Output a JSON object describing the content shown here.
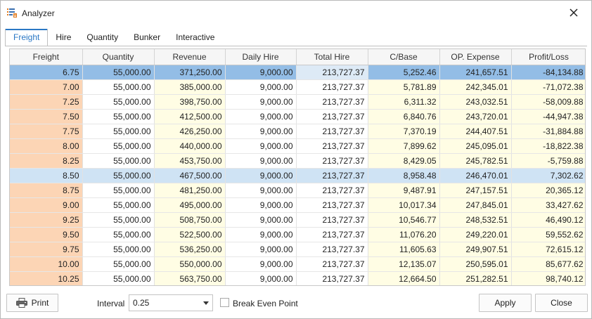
{
  "window": {
    "title": "Analyzer"
  },
  "tabs": [
    {
      "label": "Freight",
      "active": true
    },
    {
      "label": "Hire",
      "active": false
    },
    {
      "label": "Quantity",
      "active": false
    },
    {
      "label": "Bunker",
      "active": false
    },
    {
      "label": "Interactive",
      "active": false
    }
  ],
  "grid": {
    "columns": [
      "Freight",
      "Quantity",
      "Revenue",
      "Daily Hire",
      "Total Hire",
      "C/Base",
      "OP. Expense",
      "Profit/Loss"
    ],
    "selected_row": 0,
    "break_even_row": 7,
    "rows": [
      [
        "6.75",
        "55,000.00",
        "371,250.00",
        "9,000.00",
        "213,727.37",
        "5,252.46",
        "241,657.51",
        "-84,134.88"
      ],
      [
        "7.00",
        "55,000.00",
        "385,000.00",
        "9,000.00",
        "213,727.37",
        "5,781.89",
        "242,345.01",
        "-71,072.38"
      ],
      [
        "7.25",
        "55,000.00",
        "398,750.00",
        "9,000.00",
        "213,727.37",
        "6,311.32",
        "243,032.51",
        "-58,009.88"
      ],
      [
        "7.50",
        "55,000.00",
        "412,500.00",
        "9,000.00",
        "213,727.37",
        "6,840.76",
        "243,720.01",
        "-44,947.38"
      ],
      [
        "7.75",
        "55,000.00",
        "426,250.00",
        "9,000.00",
        "213,727.37",
        "7,370.19",
        "244,407.51",
        "-31,884.88"
      ],
      [
        "8.00",
        "55,000.00",
        "440,000.00",
        "9,000.00",
        "213,727.37",
        "7,899.62",
        "245,095.01",
        "-18,822.38"
      ],
      [
        "8.25",
        "55,000.00",
        "453,750.00",
        "9,000.00",
        "213,727.37",
        "8,429.05",
        "245,782.51",
        "-5,759.88"
      ],
      [
        "8.50",
        "55,000.00",
        "467,500.00",
        "9,000.00",
        "213,727.37",
        "8,958.48",
        "246,470.01",
        "7,302.62"
      ],
      [
        "8.75",
        "55,000.00",
        "481,250.00",
        "9,000.00",
        "213,727.37",
        "9,487.91",
        "247,157.51",
        "20,365.12"
      ],
      [
        "9.00",
        "55,000.00",
        "495,000.00",
        "9,000.00",
        "213,727.37",
        "10,017.34",
        "247,845.01",
        "33,427.62"
      ],
      [
        "9.25",
        "55,000.00",
        "508,750.00",
        "9,000.00",
        "213,727.37",
        "10,546.77",
        "248,532.51",
        "46,490.12"
      ],
      [
        "9.50",
        "55,000.00",
        "522,500.00",
        "9,000.00",
        "213,727.37",
        "11,076.20",
        "249,220.01",
        "59,552.62"
      ],
      [
        "9.75",
        "55,000.00",
        "536,250.00",
        "9,000.00",
        "213,727.37",
        "11,605.63",
        "249,907.51",
        "72,615.12"
      ],
      [
        "10.00",
        "55,000.00",
        "550,000.00",
        "9,000.00",
        "213,727.37",
        "12,135.07",
        "250,595.01",
        "85,677.62"
      ],
      [
        "10.25",
        "55,000.00",
        "563,750.00",
        "9,000.00",
        "213,727.37",
        "12,664.50",
        "251,282.51",
        "98,740.12"
      ]
    ]
  },
  "footer": {
    "print_label": "Print",
    "interval_label": "Interval",
    "interval_value": "0.25",
    "break_even_label": "Break Even Point",
    "break_even_checked": false,
    "apply_label": "Apply",
    "close_label": "Close"
  },
  "colors": {
    "accent": "#2b78c5",
    "freight_cell": "#fcd5b5",
    "editable_cell": "#fffde4",
    "selected_row": "#93bde6",
    "break_even_row": "#cfe3f4"
  }
}
